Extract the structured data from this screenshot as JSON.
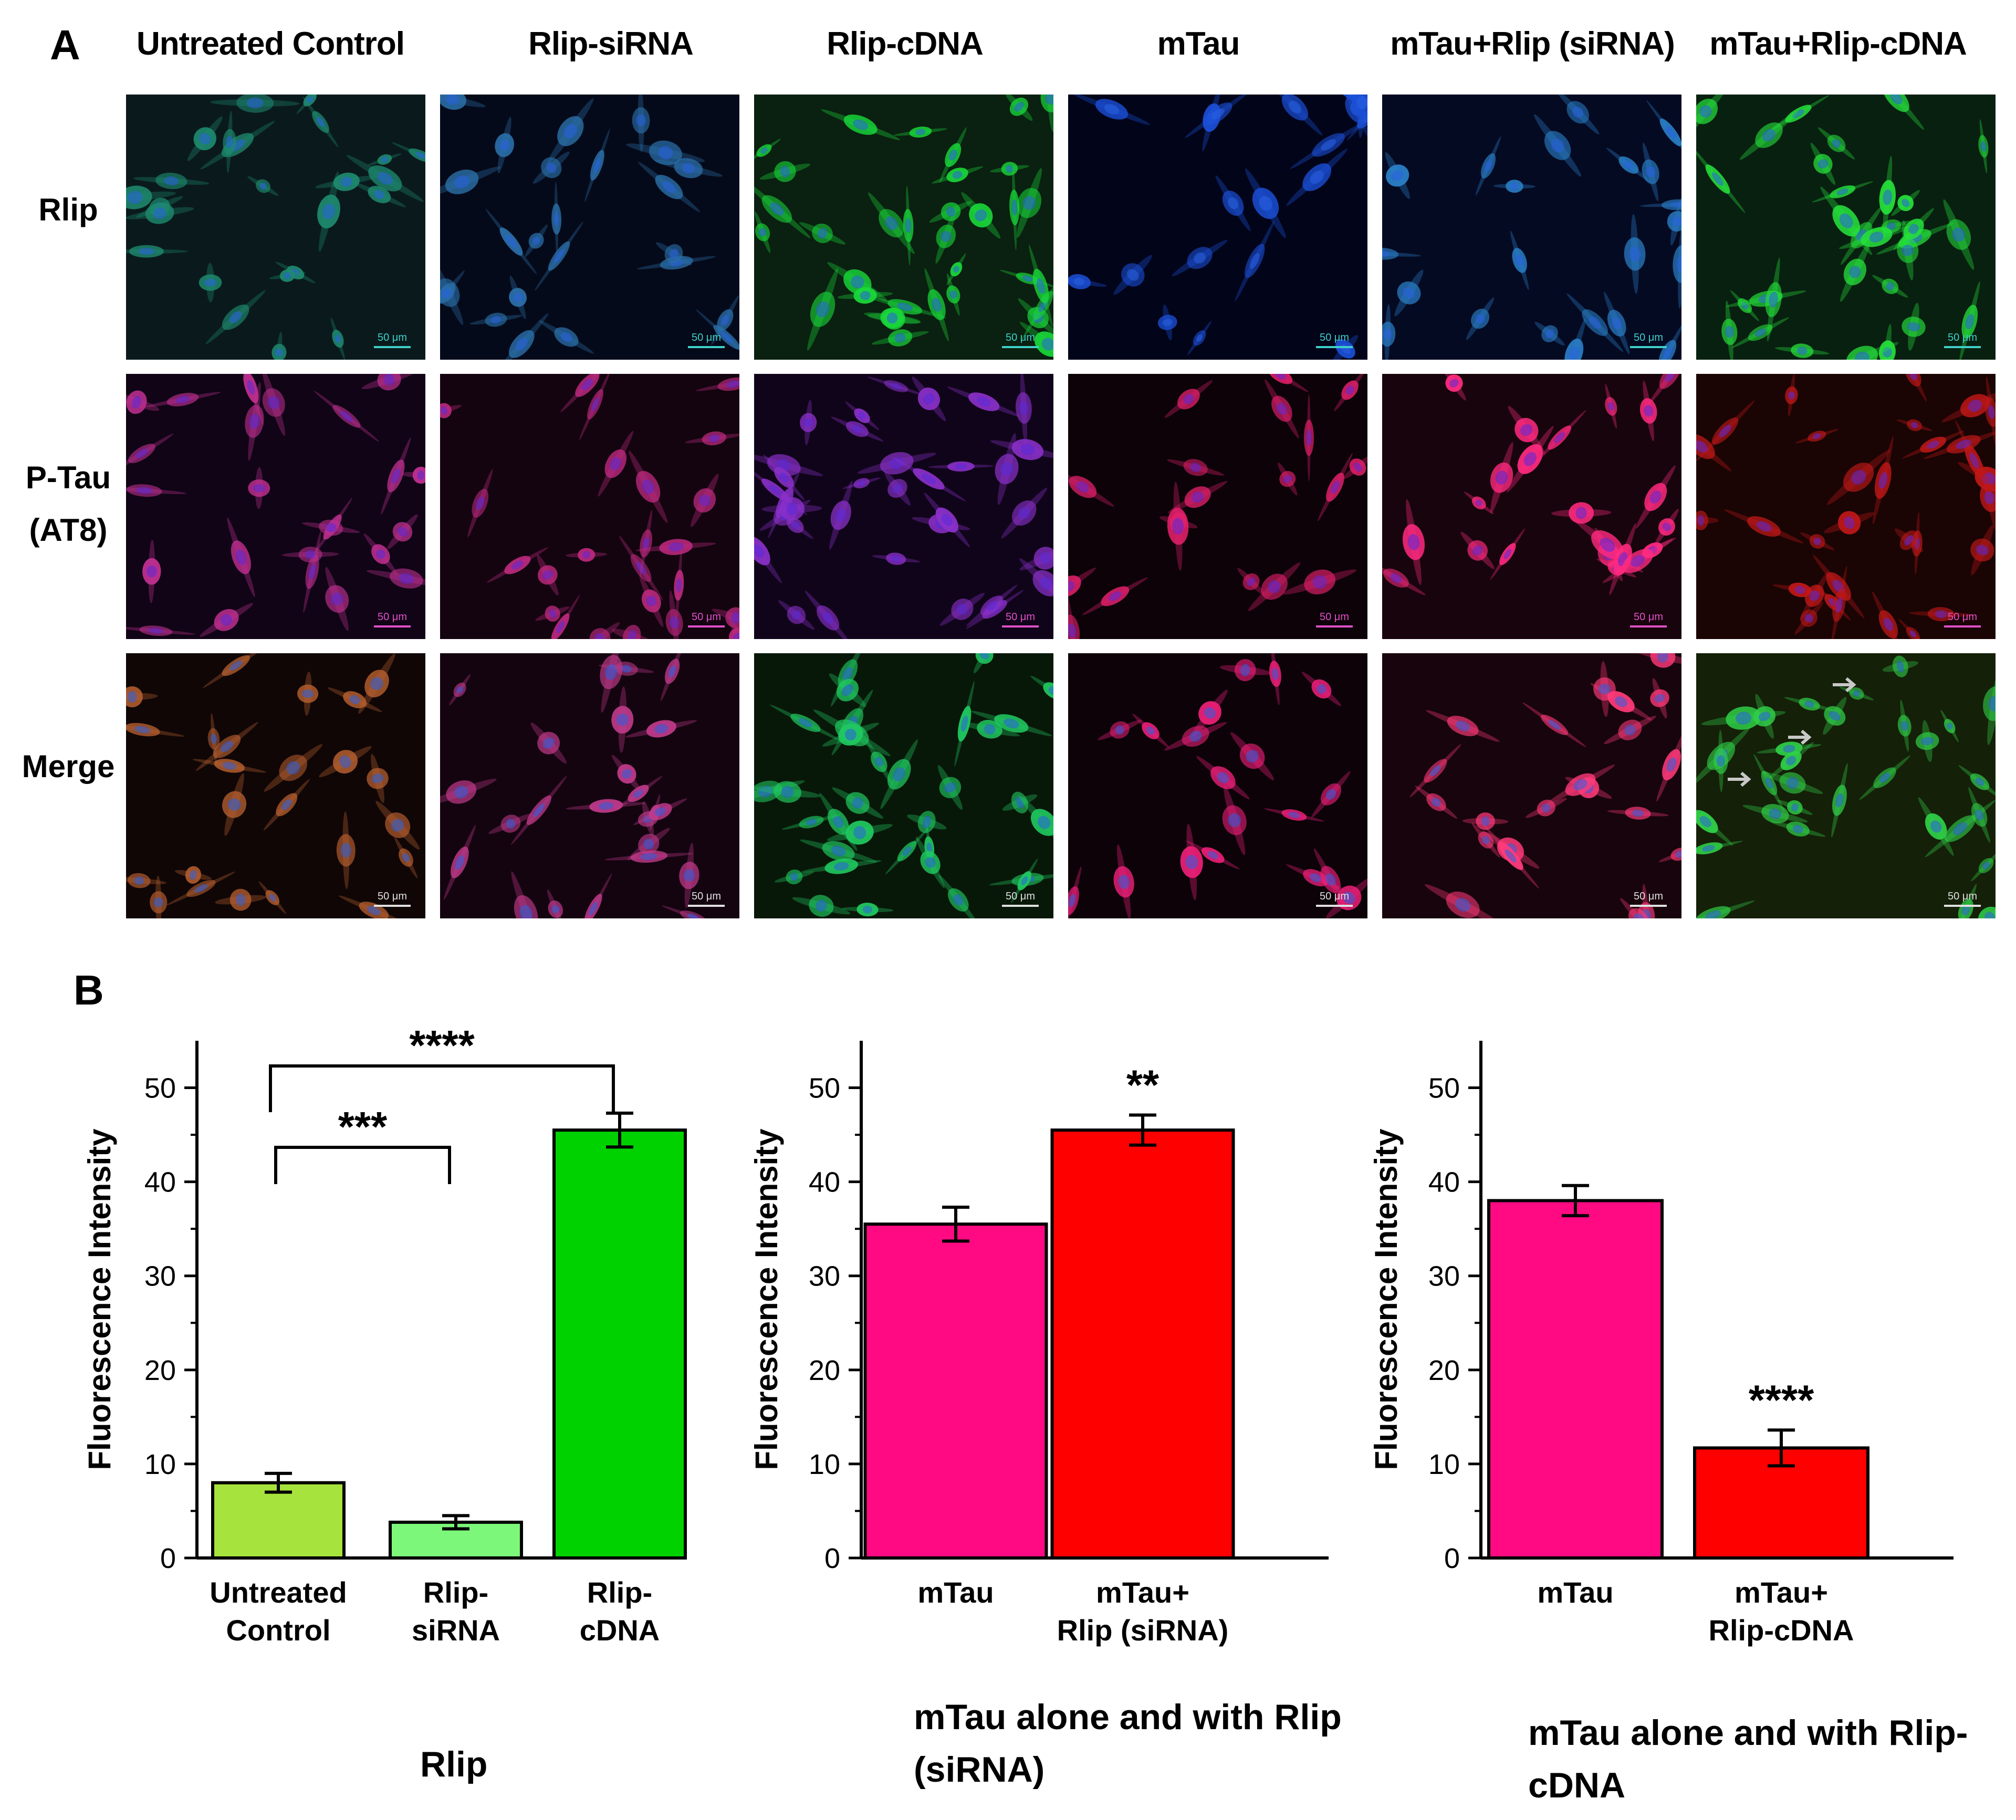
{
  "panel_a": {
    "letter": "A",
    "columns": [
      {
        "id": "uc",
        "label": "Untreated Control"
      },
      {
        "id": "sir",
        "label": "Rlip-siRNA"
      },
      {
        "id": "cdna",
        "label": "Rlip-cDNA"
      },
      {
        "id": "mtau",
        "label": "mTau"
      },
      {
        "id": "mts",
        "label": "mTau+Rlip  (siRNA)"
      },
      {
        "id": "mtc",
        "label": "mTau+Rlip-cDNA"
      }
    ],
    "rows": [
      {
        "id": "rlip",
        "label": "Rlip"
      },
      {
        "id": "ptau",
        "label": "P-Tau (AT8)"
      },
      {
        "id": "merge",
        "label": "Merge"
      }
    ],
    "scale_bar_label": "50 μm"
  },
  "panel_b": {
    "letter": "B",
    "y_axis_label": "Fluorescence Intensity",
    "captions": [
      "Rlip",
      "mTau alone and with Rlip (siRNA)",
      "mTau alone and with Rlip-cDNA"
    ]
  },
  "chart_data": [
    {
      "type": "bar",
      "categories": [
        "Untreated Control",
        "Rlip-siRNA",
        "Rlip-cDNA"
      ],
      "values": [
        8.0,
        3.8,
        45.5
      ],
      "errors": [
        1.0,
        0.7,
        1.8
      ],
      "colors": [
        "#a6e33c",
        "#7df77a",
        "#00d200"
      ],
      "ylabel": "Fluorescence Intensity",
      "ylim": [
        0,
        55
      ],
      "yticks": [
        0,
        10,
        20,
        30,
        40,
        50
      ],
      "significance": [
        {
          "from": 0,
          "to": 2,
          "label": "****"
        },
        {
          "from": 0,
          "to": 1,
          "label": "***"
        }
      ],
      "caption": "Rlip"
    },
    {
      "type": "bar",
      "categories": [
        "mTau",
        "mTau+ Rlip (siRNA)"
      ],
      "values": [
        35.5,
        45.5
      ],
      "errors": [
        1.8,
        1.6
      ],
      "colors": [
        "#ff0a82",
        "#ff0000"
      ],
      "ylabel": "Fluorescence Intensity",
      "ylim": [
        0,
        55
      ],
      "yticks": [
        0,
        10,
        20,
        30,
        40,
        50
      ],
      "bar_stars": [
        null,
        "**"
      ],
      "caption": "mTau alone and with Rlip (siRNA)"
    },
    {
      "type": "bar",
      "categories": [
        "mTau",
        "mTau+ Rlip-cDNA"
      ],
      "values": [
        38.0,
        11.7
      ],
      "errors": [
        1.6,
        1.9
      ],
      "colors": [
        "#ff0a82",
        "#ff0000"
      ],
      "ylabel": "Fluorescence Intensity",
      "ylim": [
        0,
        55
      ],
      "yticks": [
        0,
        10,
        20,
        30,
        40,
        50
      ],
      "bar_stars": [
        null,
        "****"
      ],
      "caption": "mTau alone and with Rlip-cDNA"
    }
  ]
}
